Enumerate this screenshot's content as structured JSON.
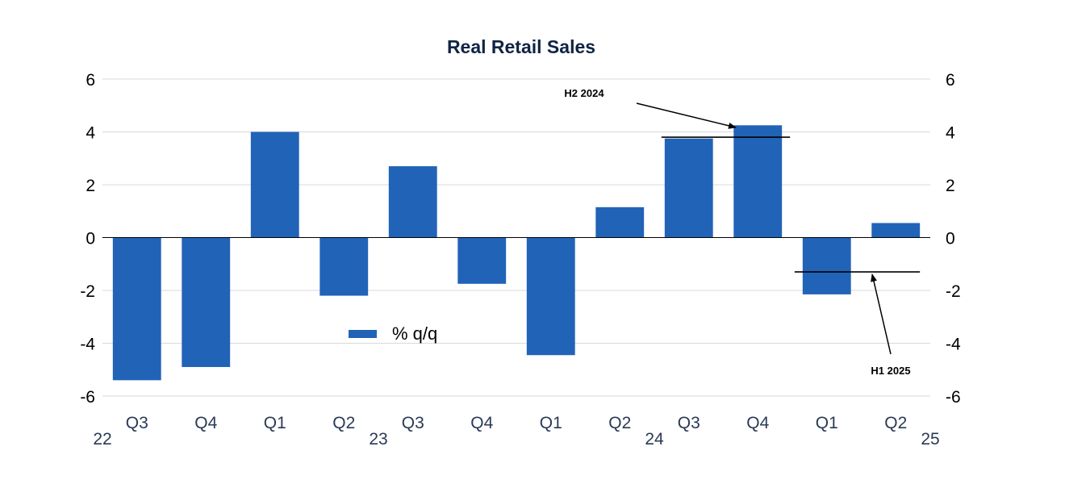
{
  "chart_data": {
    "type": "bar",
    "title": "Real Retail Sales",
    "categories": [
      "Q3",
      "Q4",
      "Q1",
      "Q2",
      "Q3",
      "Q4",
      "Q1",
      "Q2",
      "Q3",
      "Q4",
      "Q1",
      "Q2"
    ],
    "year_labels": [
      {
        "label": "22",
        "category_index": 0
      },
      {
        "label": "23",
        "category_index": 4
      },
      {
        "label": "24",
        "category_index": 8
      },
      {
        "label": "25",
        "category_index": 12
      }
    ],
    "series": [
      {
        "name": "% q/q",
        "color": "#2163b7",
        "values": [
          -5.4,
          -4.9,
          4.0,
          -2.2,
          2.7,
          -1.75,
          -4.45,
          1.15,
          3.75,
          4.25,
          -2.15,
          0.55
        ]
      }
    ],
    "ylim": [
      -6,
      6
    ],
    "y_ticks": [
      -6,
      -4,
      -2,
      0,
      2,
      4,
      6
    ],
    "y_tick_labels": [
      "-6",
      "-4",
      "-2",
      "0",
      "2",
      "4",
      "6"
    ],
    "grid": true,
    "dual_y_axis": true,
    "legend_position": "center",
    "annotations": [
      {
        "label": "H2 2024",
        "value": 3.8,
        "from_category": 8,
        "to_category": 9
      },
      {
        "label": "H1 2025",
        "value": -1.3,
        "from_category": 10,
        "to_category": 11
      }
    ],
    "colors": {
      "bar": "#2163b7",
      "grid": "#d9d9d9",
      "title": "#0f2444",
      "category_text": "#2a3a55",
      "axis_line": "#000000"
    }
  }
}
